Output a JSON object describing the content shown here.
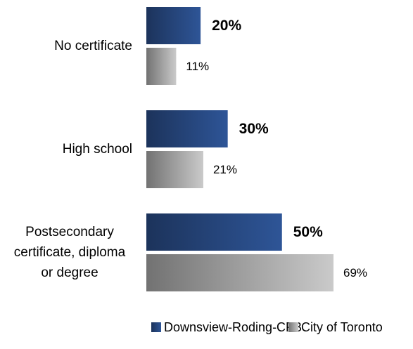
{
  "chart_data": {
    "type": "bar",
    "orientation": "horizontal",
    "categories": [
      "No certificate",
      "High school",
      "Postsecondary certificate, diploma or degree"
    ],
    "series": [
      {
        "name": "Downsview-Roding-CFB",
        "color": "#2e5597",
        "values": [
          20,
          30,
          50
        ],
        "value_labels": [
          "20%",
          "30%",
          "50%"
        ]
      },
      {
        "name": "City of Toronto",
        "color": "#b0b0b0",
        "values": [
          11,
          21,
          69
        ],
        "value_labels": [
          "11%",
          "21%",
          "69%"
        ]
      }
    ],
    "legend": "bottom"
  }
}
